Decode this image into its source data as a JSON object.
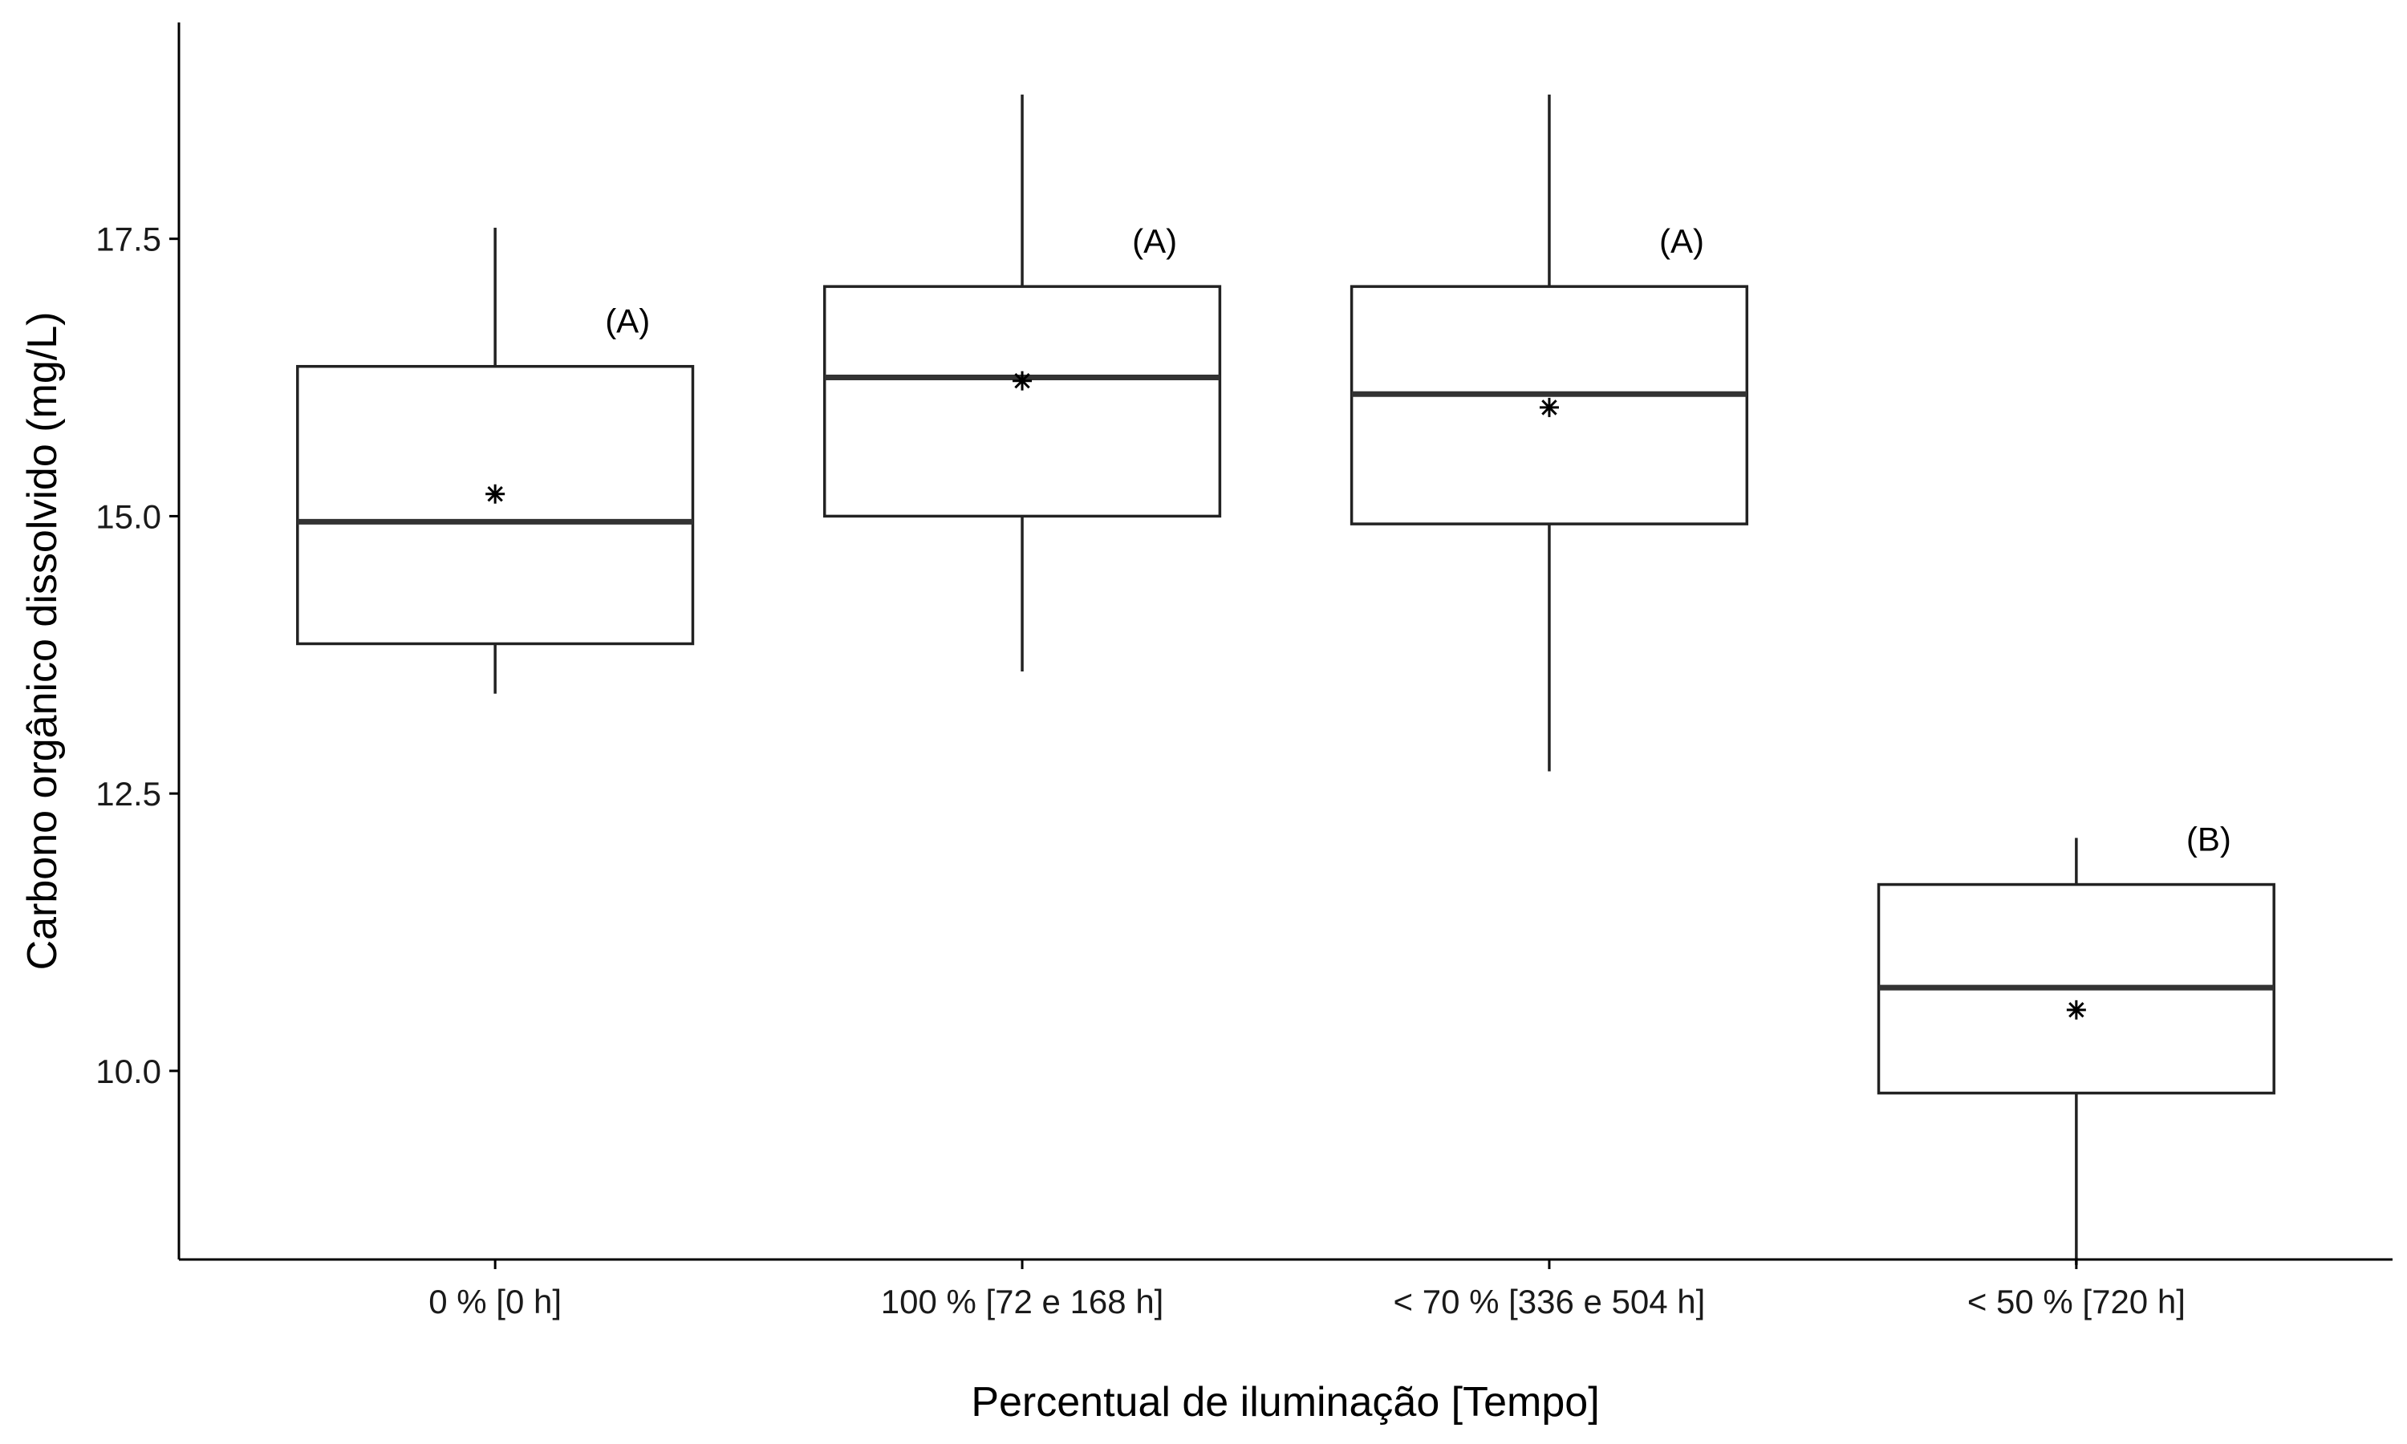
{
  "chart_data": {
    "type": "box",
    "xlabel": "Percentual de iluminação [Tempo]",
    "ylabel": "Carbono orgânico dissolvido (mg/L)",
    "ylim": [
      8.3,
      19.45
    ],
    "yticks": [
      10.0,
      12.5,
      15.0,
      17.5
    ],
    "ytick_labels": [
      "10.0",
      "12.5",
      "15.0",
      "17.5"
    ],
    "grid": false,
    "mean_marker": "asterisk",
    "categories": [
      "0 % [0 h]",
      "100 % [72 e 168 h]",
      "< 70 % [336 e 504 h]",
      "< 50 % [720 h]"
    ],
    "boxes": [
      {
        "category": "0 % [0 h]",
        "min": 13.4,
        "q1": 13.85,
        "median": 14.95,
        "q3": 16.35,
        "max": 17.6,
        "mean": 15.2,
        "letter": "(A)"
      },
      {
        "category": "100 % [72 e 168 h]",
        "min": 13.6,
        "q1": 15.0,
        "median": 16.25,
        "q3": 17.07,
        "max": 18.8,
        "mean": 16.22,
        "letter": "(A)"
      },
      {
        "category": "< 70 % [336 e 504 h]",
        "min": 12.7,
        "q1": 14.93,
        "median": 16.1,
        "q3": 17.07,
        "max": 18.8,
        "mean": 15.98,
        "letter": "(A)"
      },
      {
        "category": "< 50 % [720 h]",
        "min": 8.25,
        "q1": 9.8,
        "median": 10.75,
        "q3": 11.68,
        "max": 12.1,
        "mean": 10.55,
        "letter": "(B)"
      }
    ]
  }
}
